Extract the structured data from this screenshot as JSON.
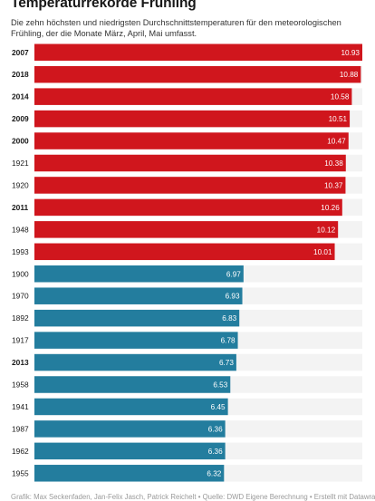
{
  "title": "Temperaturrekorde Frühling",
  "subtitle": "Die zehn höchsten und niedrigsten Durchschnittstemperaturen für den meteorologischen Frühling, der die Monate März, April, Mai umfasst.",
  "footer": "Grafik: Max Seckenfaden, Jan-Felix Jasch, Patrick Reichelt • Quelle: DWD Eigene Berechnung • Erstellt mit Datawrapper",
  "colors": {
    "warm": "#d0161d",
    "cold": "#237d9e",
    "track": "#f3f3f3"
  },
  "chart_data": {
    "type": "bar",
    "orientation": "horizontal",
    "xlim": [
      0,
      10.93
    ],
    "categories": [
      "2007",
      "2018",
      "2014",
      "2009",
      "2000",
      "1921",
      "1920",
      "2011",
      "1948",
      "1993",
      "1900",
      "1970",
      "1892",
      "1917",
      "2013",
      "1958",
      "1941",
      "1987",
      "1962",
      "1955"
    ],
    "values": [
      10.93,
      10.88,
      10.58,
      10.51,
      10.47,
      10.38,
      10.37,
      10.26,
      10.12,
      10.01,
      6.97,
      6.93,
      6.83,
      6.78,
      6.73,
      6.53,
      6.45,
      6.36,
      6.36,
      6.32
    ],
    "value_labels": [
      "10.93",
      "10.88",
      "10.58",
      "10.51",
      "10.47",
      "10.38",
      "10.37",
      "10.26",
      "10.12",
      "10.01",
      "6.97",
      "6.93",
      "6.83",
      "6.78",
      "6.73",
      "6.53",
      "6.45",
      "6.36",
      "6.36",
      "6.32"
    ],
    "bold_categories": [
      "2007",
      "2018",
      "2014",
      "2009",
      "2000",
      "2011",
      "2013"
    ],
    "groups": [
      "warm",
      "warm",
      "warm",
      "warm",
      "warm",
      "warm",
      "warm",
      "warm",
      "warm",
      "warm",
      "cold",
      "cold",
      "cold",
      "cold",
      "cold",
      "cold",
      "cold",
      "cold",
      "cold",
      "cold"
    ],
    "grid": false,
    "legend": "none"
  }
}
